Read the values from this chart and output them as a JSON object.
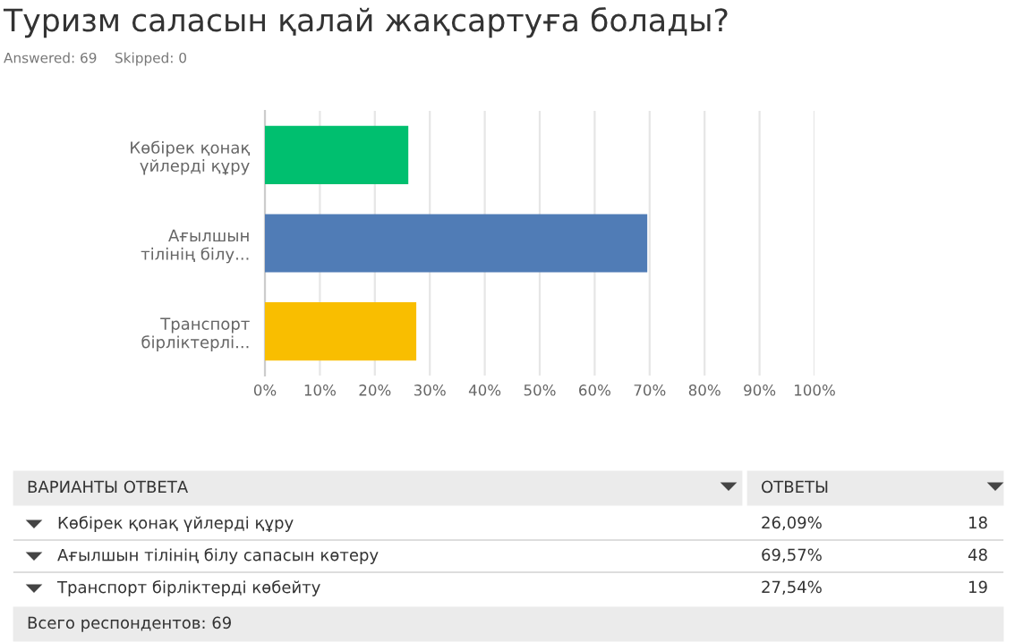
{
  "chart_data": {
    "type": "bar",
    "orientation": "horizontal",
    "title": "Туризм саласын қалай жақсартуға болады?",
    "categories": [
      "Көбірек қонақ\nүйлерді құру",
      "Ағылшын\nтілінің білу...",
      "Транспорт\nбірліктерлі..."
    ],
    "values": [
      26.09,
      69.57,
      27.54
    ],
    "colors": [
      "#00bf6f",
      "#507cb6",
      "#f9be00"
    ],
    "xlim": [
      0,
      100
    ],
    "xticks": [
      {
        "value": 0,
        "label": "0%"
      },
      {
        "value": 10,
        "label": "10%"
      },
      {
        "value": 20,
        "label": "20%"
      },
      {
        "value": 30,
        "label": "30%"
      },
      {
        "value": 40,
        "label": "40%"
      },
      {
        "value": 50,
        "label": "50%"
      },
      {
        "value": 60,
        "label": "60%"
      },
      {
        "value": 70,
        "label": "70%"
      },
      {
        "value": 80,
        "label": "80%"
      },
      {
        "value": 90,
        "label": "90%"
      },
      {
        "value": 100,
        "label": "100%"
      }
    ],
    "grid": "x",
    "legend": false,
    "annotations": [
      "Answered: 69",
      "Skipped: 0",
      "ВАРИАНТЫ ОТВЕТА",
      "ОТВЕТЫ",
      "Көбірек қонақ үйлерді құру",
      "26,09%",
      "18",
      "Ағылшын тілінің білу сапасын көтеру",
      "69,57%",
      "48",
      "Транспорт бірліктерді көбейту",
      "27,54%",
      "19",
      "Всего респондентов: 69"
    ]
  }
}
